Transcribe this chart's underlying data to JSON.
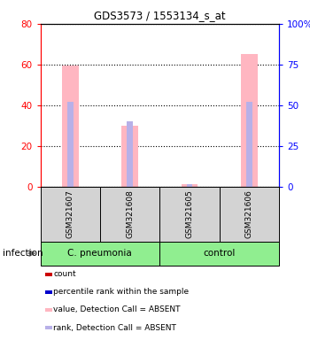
{
  "title": "GDS3573 / 1553134_s_at",
  "samples": [
    "GSM321607",
    "GSM321608",
    "GSM321605",
    "GSM321606"
  ],
  "group_labels": [
    "C. pneumonia",
    "control"
  ],
  "group_sample_counts": [
    2,
    2
  ],
  "left_ylim": [
    0,
    80
  ],
  "right_ylim": [
    0,
    100
  ],
  "left_ticks": [
    0,
    20,
    40,
    60,
    80
  ],
  "right_ticks": [
    0,
    25,
    50,
    75,
    100
  ],
  "right_tick_labels": [
    "0",
    "25",
    "50",
    "75",
    "100%"
  ],
  "value_bars": [
    59.5,
    30.0,
    1.5,
    65.0
  ],
  "rank_bars_pct": [
    52.0,
    40.0,
    2.0,
    52.0
  ],
  "value_color_absent": "#FFB6C1",
  "rank_color_absent": "#B8B0E8",
  "detection_call": [
    "ABSENT",
    "ABSENT",
    "ABSENT",
    "ABSENT"
  ],
  "infection_label": "infection",
  "legend_items": [
    {
      "color": "#CC0000",
      "label": "count"
    },
    {
      "color": "#0000CC",
      "label": "percentile rank within the sample"
    },
    {
      "color": "#FFB6C1",
      "label": "value, Detection Call = ABSENT"
    },
    {
      "color": "#B8B0E8",
      "label": "rank, Detection Call = ABSENT"
    }
  ],
  "group_colors": [
    "#90EE90",
    "#90EE90"
  ],
  "sample_box_color": "#D3D3D3"
}
